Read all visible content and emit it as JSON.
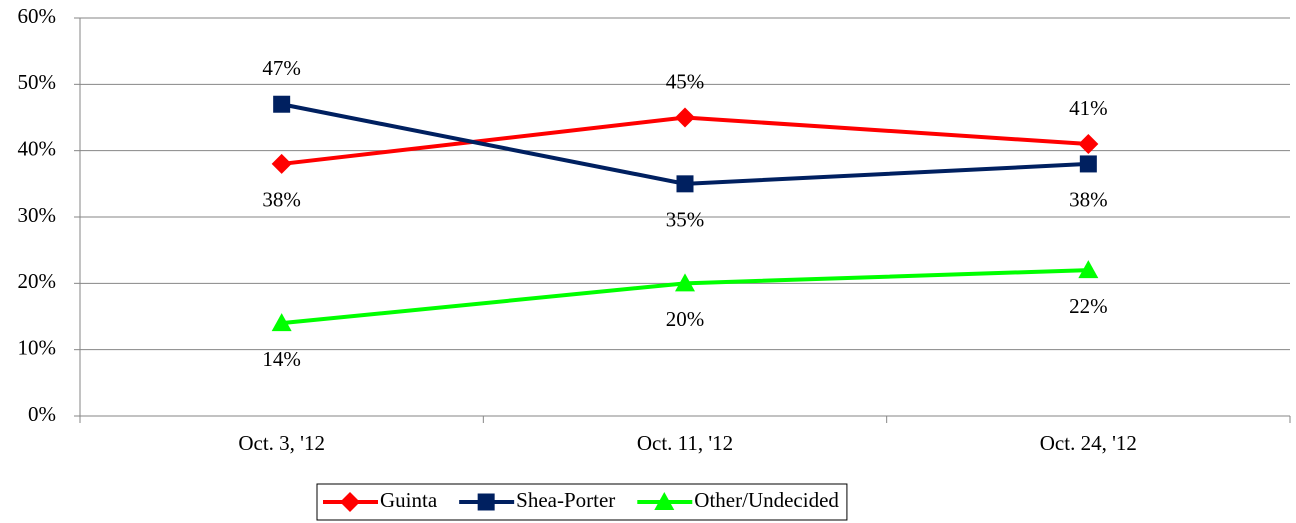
{
  "chart_data": {
    "type": "line",
    "categories": [
      "Oct. 3, '12",
      "Oct. 11, '12",
      "Oct. 24, '12"
    ],
    "series": [
      {
        "name": "Guinta",
        "color": "#ff0000",
        "marker": "diamond",
        "values": [
          38,
          45,
          41
        ],
        "value_labels": [
          "38%",
          "45%",
          "41%"
        ]
      },
      {
        "name": "Shea-Porter",
        "color": "#002060",
        "marker": "square",
        "values": [
          47,
          35,
          38
        ],
        "value_labels": [
          "47%",
          "35%",
          "38%"
        ]
      },
      {
        "name": "Other/Undecided",
        "color": "#00ff00",
        "marker": "triangle",
        "values": [
          14,
          20,
          22
        ],
        "value_labels": [
          "14%",
          "20%",
          "22%"
        ]
      }
    ],
    "ylim": [
      0,
      60
    ],
    "yticks": [
      {
        "value": 0,
        "label": "0%"
      },
      {
        "value": 10,
        "label": "10%"
      },
      {
        "value": 20,
        "label": "20%"
      },
      {
        "value": 30,
        "label": "30%"
      },
      {
        "value": 40,
        "label": "40%"
      },
      {
        "value": 50,
        "label": "50%"
      },
      {
        "value": 60,
        "label": "60%"
      }
    ],
    "grid": true,
    "legend": "bottom"
  }
}
